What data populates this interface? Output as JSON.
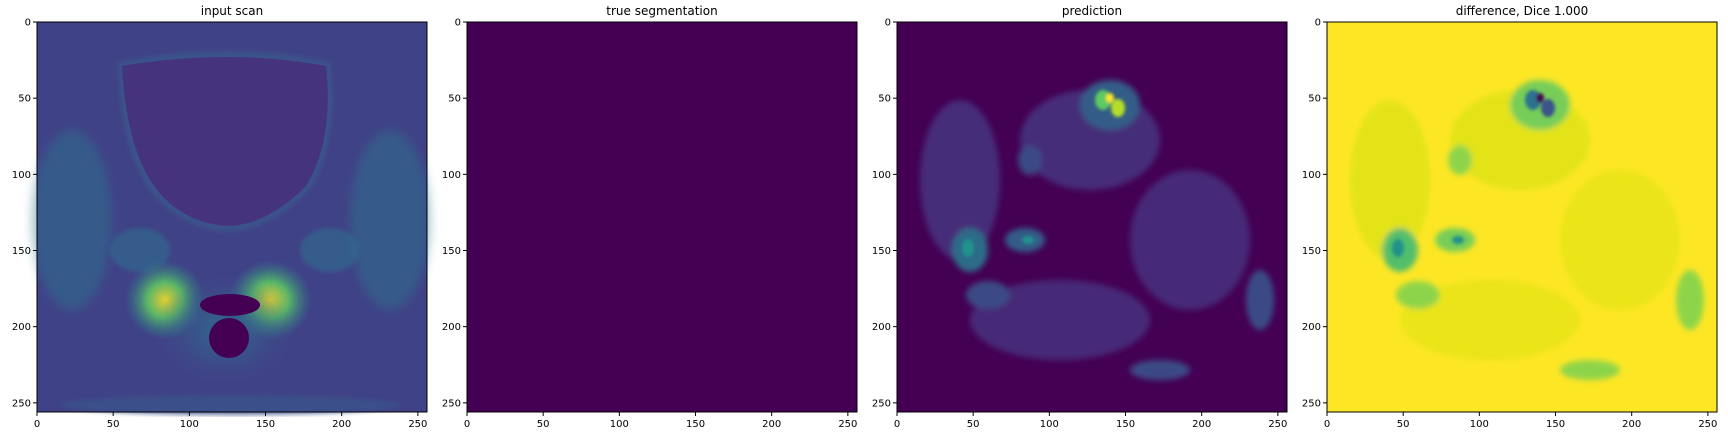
{
  "figure": {
    "panels": [
      {
        "id": "input",
        "title": "input scan"
      },
      {
        "id": "truth",
        "title": "true segmentation"
      },
      {
        "id": "prediction",
        "title": "prediction"
      },
      {
        "id": "difference",
        "title": "difference, Dice 1.000"
      }
    ],
    "colormap": "viridis",
    "colors": {
      "viridis_low": "#440154",
      "viridis_mid": "#21918c",
      "viridis_high": "#fde725",
      "axis": "#000000"
    },
    "image_extent": [
      0,
      256
    ],
    "x_ticks": [
      "0",
      "50",
      "100",
      "150",
      "200",
      "250"
    ],
    "y_ticks": [
      "0",
      "50",
      "100",
      "150",
      "200",
      "250"
    ]
  }
}
